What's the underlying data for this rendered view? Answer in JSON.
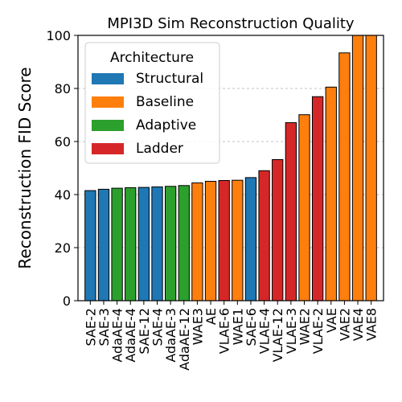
{
  "chart_data": {
    "type": "bar",
    "title": "MPI3D Sim Reconstruction Quality",
    "xlabel": "",
    "ylabel": "Reconstruction FID Score",
    "ylim": [
      0,
      100
    ],
    "yticks": [
      0,
      20,
      40,
      60,
      80,
      100
    ],
    "grid": "y-dashed",
    "legend": {
      "title": "Architecture",
      "placement": "top-left",
      "entries": [
        {
          "name": "Structural",
          "color": "#1f77b4"
        },
        {
          "name": "Baseline",
          "color": "#ff7f0e"
        },
        {
          "name": "Adaptive",
          "color": "#2ca02c"
        },
        {
          "name": "Ladder",
          "color": "#d62728"
        }
      ]
    },
    "bars": [
      {
        "label": "SAE-2",
        "value": 41.5,
        "group": "Structural"
      },
      {
        "label": "SAE-3",
        "value": 42.0,
        "group": "Structural"
      },
      {
        "label": "AdaAE-4",
        "value": 42.4,
        "group": "Adaptive"
      },
      {
        "label": "AdaAE-4",
        "value": 42.6,
        "group": "Adaptive"
      },
      {
        "label": "SAE-12",
        "value": 42.7,
        "group": "Structural"
      },
      {
        "label": "SAE-4",
        "value": 42.9,
        "group": "Structural"
      },
      {
        "label": "AdaAE-3",
        "value": 43.1,
        "group": "Adaptive"
      },
      {
        "label": "AdaAE-12",
        "value": 43.4,
        "group": "Adaptive"
      },
      {
        "label": "WAE3",
        "value": 44.4,
        "group": "Baseline"
      },
      {
        "label": "AE",
        "value": 45.0,
        "group": "Baseline"
      },
      {
        "label": "VLAE-6",
        "value": 45.3,
        "group": "Ladder"
      },
      {
        "label": "WAE1",
        "value": 45.4,
        "group": "Baseline"
      },
      {
        "label": "SAE-6",
        "value": 46.4,
        "group": "Structural"
      },
      {
        "label": "VLAE-4",
        "value": 49.0,
        "group": "Ladder"
      },
      {
        "label": "VLAE-12",
        "value": 53.2,
        "group": "Ladder"
      },
      {
        "label": "VLAE-3",
        "value": 67.1,
        "group": "Ladder"
      },
      {
        "label": "WAE2",
        "value": 70.1,
        "group": "Baseline"
      },
      {
        "label": "VLAE-2",
        "value": 76.9,
        "group": "Ladder"
      },
      {
        "label": "VAE",
        "value": 80.5,
        "group": "Baseline"
      },
      {
        "label": "VAE2",
        "value": 93.4,
        "group": "Baseline"
      },
      {
        "label": "VAE4",
        "value": 100,
        "group": "Baseline"
      },
      {
        "label": "VAE8",
        "value": 100,
        "group": "Baseline"
      }
    ]
  }
}
